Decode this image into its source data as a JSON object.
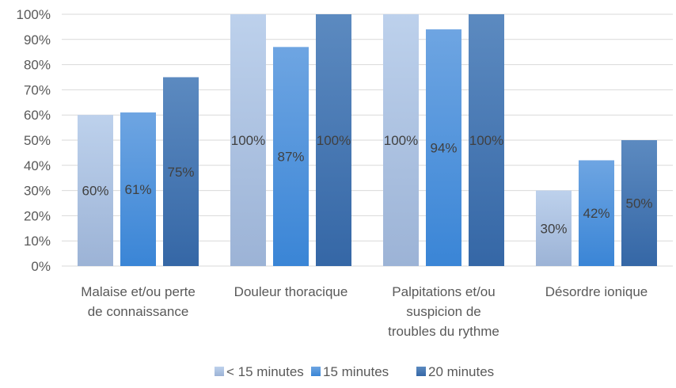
{
  "chart_data": {
    "type": "bar",
    "categories": [
      [
        "Malaise et/ou perte",
        "de connaissance"
      ],
      [
        "Douleur thoracique"
      ],
      [
        "Palpitations et/ou",
        "suspicion de",
        "troubles du rythme"
      ],
      [
        "Désordre ionique"
      ]
    ],
    "series": [
      {
        "name": "< 15 minutes",
        "values": [
          60,
          100,
          100,
          30
        ],
        "labels": [
          "60%",
          "100%",
          "100%",
          "30%"
        ],
        "color_top": "#bdd1ec",
        "color_bottom": "#9cb3d6"
      },
      {
        "name": "15 minutes",
        "values": [
          61,
          87,
          94,
          42
        ],
        "labels": [
          "61%",
          "87%",
          "94%",
          "42%"
        ],
        "color_top": "#6ea5e2",
        "color_bottom": "#3a85d6"
      },
      {
        "name": "20 minutes",
        "values": [
          75,
          100,
          100,
          50
        ],
        "labels": [
          "75%",
          "100%",
          "100%",
          "50%"
        ],
        "color_top": "#5c8ac0",
        "color_bottom": "#3567a6"
      }
    ],
    "y_ticks": [
      "0%",
      "10%",
      "20%",
      "30%",
      "40%",
      "50%",
      "60%",
      "70%",
      "80%",
      "90%",
      "100%"
    ],
    "ylim": [
      0,
      100
    ],
    "grid": true,
    "legend_position": "bottom"
  }
}
